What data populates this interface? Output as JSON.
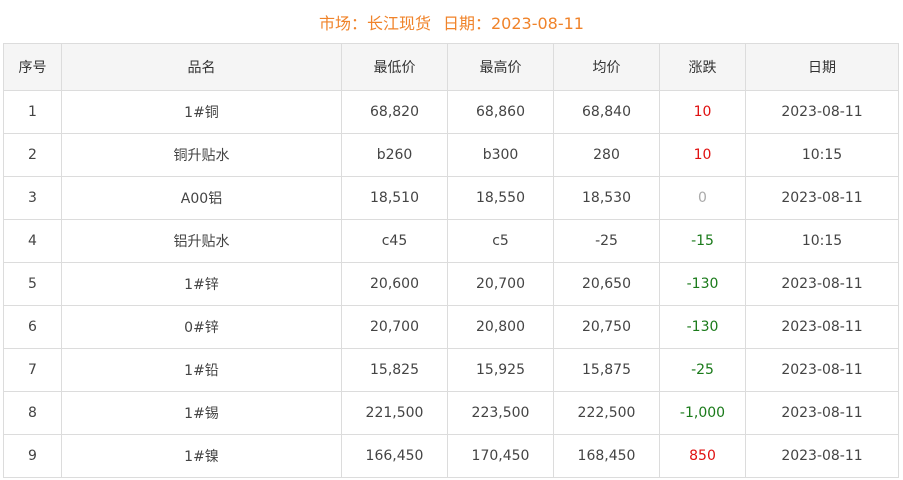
{
  "title": {
    "market": "市场：长江现货",
    "date": "日期：2023-08-11"
  },
  "headers": [
    "序号",
    "品名",
    "最低价",
    "最高价",
    "均价",
    "涨跌",
    "日期"
  ],
  "rows": [
    [
      "1",
      "1#铜",
      "68,820",
      "68,860",
      "68,840",
      "10",
      "2023-08-11"
    ],
    [
      "2",
      "铜升贴水",
      "b260",
      "b300",
      "280",
      "10",
      "10:15"
    ],
    [
      "3",
      "A00铝",
      "18,510",
      "18,550",
      "18,530",
      "0",
      "2023-08-11"
    ],
    [
      "4",
      "铝升贴水",
      "c45",
      "c5",
      "-25",
      "-15",
      "10:15"
    ],
    [
      "5",
      "1#锌",
      "20,600",
      "20,700",
      "20,650",
      "-130",
      "2023-08-11"
    ],
    [
      "6",
      "0#锌",
      "20,700",
      "20,800",
      "20,750",
      "-130",
      "2023-08-11"
    ],
    [
      "7",
      "1#铅",
      "15,825",
      "15,925",
      "15,875",
      "-25",
      "2023-08-11"
    ],
    [
      "8",
      "1#锡",
      "221,500",
      "223,500",
      "222,500",
      "-1,000",
      "2023-08-11"
    ],
    [
      "9",
      "1#镍",
      "166,450",
      "170,450",
      "168,450",
      "850",
      "2023-08-11"
    ]
  ],
  "colors": {
    "title": "#f0832a",
    "up": "#e01010",
    "down": "#1a7a1a",
    "flat": "#aaaaaa"
  }
}
